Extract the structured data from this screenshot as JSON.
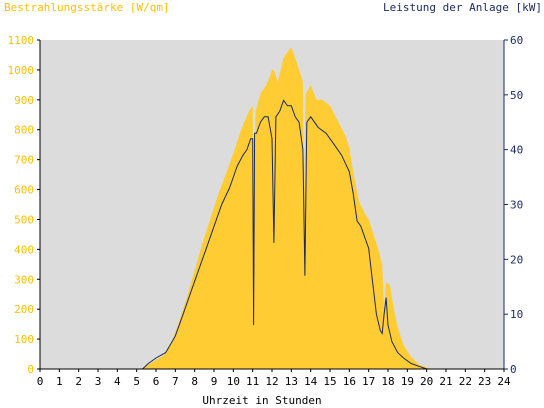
{
  "chart_data": {
    "type": "area",
    "title_left": "Bestrahlungsstärke [W/qm]",
    "title_right": "Leistung der Anlage [kW]",
    "xlabel": "Uhrzeit in Stunden",
    "xlim": [
      0,
      24
    ],
    "x_ticks": [
      "0",
      "1",
      "2",
      "3",
      "4",
      "5",
      "6",
      "7",
      "8",
      "9",
      "10",
      "11",
      "12",
      "13",
      "14",
      "15",
      "16",
      "17",
      "18",
      "19",
      "20",
      "21",
      "22",
      "23",
      "24"
    ],
    "y_left": {
      "label": "Bestrahlungsstärke [W/qm]",
      "ylim": [
        0,
        1100
      ],
      "ticks": [
        "0",
        "100",
        "200",
        "300",
        "400",
        "500",
        "600",
        "700",
        "800",
        "900",
        "1000",
        "1100"
      ],
      "color": "#ffc000"
    },
    "y_right": {
      "label": "Leistung der Anlage [kW]",
      "ylim": [
        0,
        60
      ],
      "ticks": [
        "0",
        "10",
        "20",
        "30",
        "40",
        "50",
        "60"
      ],
      "color": "#1a2a5e"
    },
    "grid": false,
    "background_color": "#dcdcdc",
    "series": [
      {
        "name": "Bestrahlungsstärke [W/qm]",
        "axis": "left",
        "style": "area",
        "color": "#ffcc33",
        "x": [
          0,
          5.2,
          5.5,
          6.0,
          6.4,
          6.8,
          7.2,
          7.6,
          8.0,
          8.4,
          8.8,
          9.2,
          9.6,
          10.0,
          10.4,
          10.8,
          11.0,
          11.05,
          11.15,
          11.4,
          11.7,
          11.9,
          12.0,
          12.1,
          12.3,
          12.6,
          12.8,
          13.0,
          13.2,
          13.4,
          13.6,
          13.65,
          13.75,
          14.0,
          14.3,
          14.6,
          15.0,
          15.4,
          15.8,
          16.0,
          16.2,
          16.5,
          16.8,
          17.0,
          17.2,
          17.5,
          17.7,
          17.8,
          17.9,
          18.1,
          18.3,
          18.5,
          18.8,
          19.2,
          19.6,
          20.0,
          20.3,
          24
        ],
        "values": [
          0,
          0,
          10,
          30,
          45,
          90,
          160,
          240,
          330,
          420,
          500,
          580,
          650,
          720,
          800,
          860,
          880,
          400,
          860,
          920,
          950,
          980,
          1000,
          1000,
          960,
          1040,
          1060,
          1075,
          1040,
          1000,
          960,
          520,
          920,
          950,
          900,
          900,
          880,
          830,
          780,
          740,
          660,
          560,
          520,
          500,
          460,
          400,
          350,
          200,
          290,
          280,
          200,
          140,
          80,
          40,
          15,
          5,
          0,
          0
        ]
      },
      {
        "name": "Leistung der Anlage [kW]",
        "axis": "right",
        "style": "line",
        "color": "#1a2a5e",
        "x": [
          0,
          5.3,
          5.6,
          6.0,
          6.5,
          7.0,
          7.4,
          7.8,
          8.2,
          8.6,
          9.0,
          9.4,
          9.8,
          10.2,
          10.5,
          10.7,
          10.9,
          11.0,
          11.05,
          11.1,
          11.2,
          11.4,
          11.6,
          11.8,
          12.0,
          12.1,
          12.2,
          12.4,
          12.6,
          12.8,
          13.0,
          13.2,
          13.4,
          13.6,
          13.7,
          13.8,
          14.0,
          14.4,
          14.8,
          15.2,
          15.6,
          16.0,
          16.2,
          16.4,
          16.6,
          16.8,
          17.0,
          17.2,
          17.4,
          17.6,
          17.7,
          17.8,
          17.9,
          18.0,
          18.2,
          18.5,
          18.8,
          19.2,
          19.6,
          20.0,
          20.2,
          24
        ],
        "values": [
          0,
          0,
          1,
          2,
          3,
          6,
          10,
          14,
          18,
          22,
          26,
          30,
          33,
          37,
          39,
          40,
          42,
          42,
          8,
          43,
          43,
          45,
          46,
          46,
          42,
          23,
          46,
          47,
          49,
          48,
          48,
          46,
          45,
          40,
          17,
          45,
          46,
          44,
          43,
          41,
          39,
          36,
          32,
          27,
          26,
          24,
          22,
          16,
          10,
          7,
          6.5,
          10,
          13,
          8,
          5,
          3,
          2,
          1,
          0.5,
          0,
          0,
          0
        ]
      }
    ]
  }
}
